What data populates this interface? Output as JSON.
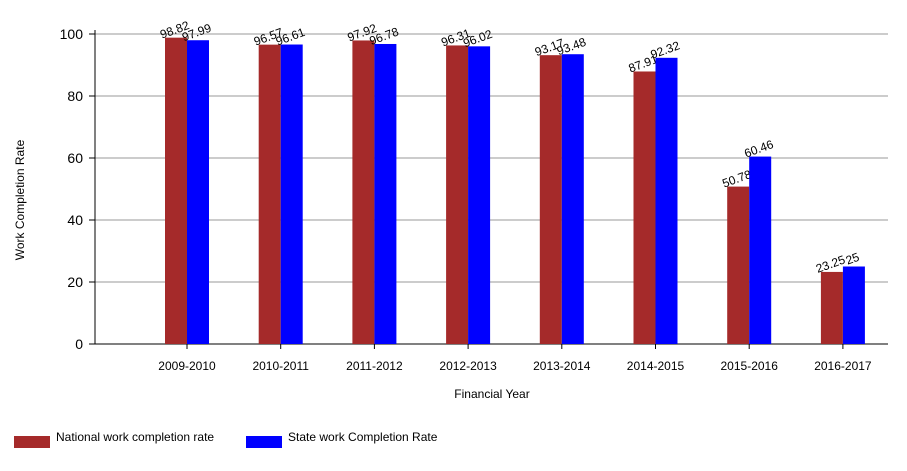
{
  "chart_data": {
    "type": "bar",
    "x_label": "Financial Year",
    "y_label": "Work Completion Rate",
    "categories": [
      "2009-2010",
      "2010-2011",
      "2011-2012",
      "2012-2013",
      "2013-2014",
      "2014-2015",
      "2015-2016",
      "2016-2017"
    ],
    "series": [
      {
        "name": "National work completion rate",
        "color": "#a52a2a",
        "values": [
          98.82,
          96.57,
          97.92,
          96.31,
          93.17,
          87.91,
          50.78,
          23.25
        ]
      },
      {
        "name": "State work Completion Rate",
        "color": "#0000ff",
        "values": [
          97.99,
          96.61,
          96.78,
          96.02,
          93.48,
          92.32,
          60.46,
          25
        ]
      }
    ],
    "ylim": [
      0,
      100
    ],
    "yticks": [
      0,
      20,
      40,
      60,
      80,
      100
    ],
    "grid": true,
    "legend": "bottom"
  }
}
